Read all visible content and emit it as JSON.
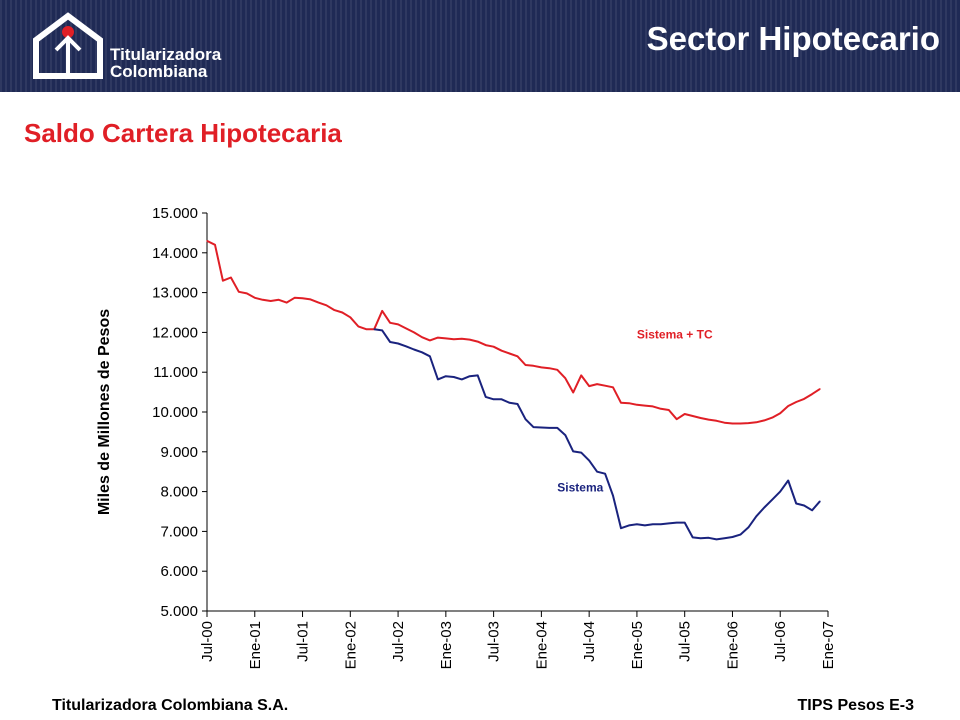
{
  "header": {
    "logo_line1": "Titularizadora",
    "logo_line2": "Colombiana",
    "title": "Sector Hipotecario",
    "background_color": "#1f2a55"
  },
  "page_title": "Saldo Cartera Hipotecaria",
  "footer": {
    "left": "Titularizadora Colombiana S.A.",
    "right": "TIPS Pesos E-3"
  },
  "chart_data": {
    "type": "line",
    "title": "",
    "xlabel": "",
    "ylabel": "Miles de Millones de Pesos",
    "ylim": [
      5000,
      15000
    ],
    "y_ticks": [
      "5.000",
      "6.000",
      "7.000",
      "8.000",
      "9.000",
      "10.000",
      "11.000",
      "12.000",
      "13.000",
      "14.000",
      "15.000"
    ],
    "x_ticks": [
      "Jul-00",
      "Ene-01",
      "Jul-01",
      "Ene-02",
      "Jul-02",
      "Ene-03",
      "Jul-03",
      "Ene-04",
      "Jul-04",
      "Ene-05",
      "Jul-05",
      "Ene-06",
      "Jul-06",
      "Ene-07"
    ],
    "x_months": [
      0,
      78
    ],
    "series": [
      {
        "name": "Sistema + TC",
        "color": "#e01f26",
        "label_at": {
          "month": 54,
          "value": 11850
        },
        "points": [
          [
            0,
            14300
          ],
          [
            1,
            14200
          ],
          [
            2,
            13300
          ],
          [
            3,
            13380
          ],
          [
            4,
            13020
          ],
          [
            5,
            12980
          ],
          [
            6,
            12870
          ],
          [
            7,
            12820
          ],
          [
            8,
            12790
          ],
          [
            9,
            12820
          ],
          [
            10,
            12750
          ],
          [
            11,
            12870
          ],
          [
            12,
            12860
          ],
          [
            13,
            12830
          ],
          [
            14,
            12750
          ],
          [
            15,
            12680
          ],
          [
            16,
            12560
          ],
          [
            17,
            12500
          ],
          [
            18,
            12380
          ],
          [
            19,
            12150
          ],
          [
            20,
            12080
          ],
          [
            21,
            12080
          ],
          [
            22,
            12540
          ],
          [
            23,
            12240
          ],
          [
            24,
            12200
          ],
          [
            25,
            12100
          ],
          [
            26,
            12000
          ],
          [
            27,
            11880
          ],
          [
            28,
            11800
          ],
          [
            29,
            11870
          ],
          [
            30,
            11850
          ],
          [
            31,
            11830
          ],
          [
            32,
            11840
          ],
          [
            33,
            11820
          ],
          [
            34,
            11770
          ],
          [
            35,
            11680
          ],
          [
            36,
            11640
          ],
          [
            37,
            11540
          ],
          [
            38,
            11470
          ],
          [
            39,
            11400
          ],
          [
            40,
            11180
          ],
          [
            41,
            11160
          ],
          [
            42,
            11120
          ],
          [
            43,
            11100
          ],
          [
            44,
            11060
          ],
          [
            45,
            10850
          ],
          [
            46,
            10490
          ],
          [
            47,
            10920
          ],
          [
            48,
            10650
          ],
          [
            49,
            10700
          ],
          [
            50,
            10660
          ],
          [
            51,
            10620
          ],
          [
            52,
            10230
          ],
          [
            53,
            10220
          ],
          [
            54,
            10180
          ],
          [
            55,
            10160
          ],
          [
            56,
            10140
          ],
          [
            57,
            10080
          ],
          [
            58,
            10050
          ],
          [
            59,
            9820
          ],
          [
            60,
            9950
          ],
          [
            61,
            9900
          ],
          [
            62,
            9850
          ],
          [
            63,
            9810
          ],
          [
            64,
            9780
          ],
          [
            65,
            9730
          ],
          [
            66,
            9710
          ],
          [
            67,
            9710
          ],
          [
            68,
            9720
          ],
          [
            69,
            9740
          ],
          [
            70,
            9790
          ],
          [
            71,
            9860
          ],
          [
            72,
            9970
          ],
          [
            73,
            10150
          ],
          [
            74,
            10250
          ],
          [
            75,
            10330
          ],
          [
            76,
            10450
          ],
          [
            77,
            10580
          ]
        ]
      },
      {
        "name": "Sistema",
        "color": "#1a237e",
        "label_at": {
          "month": 44,
          "value": 8000
        },
        "points": [
          [
            21,
            12080
          ],
          [
            22,
            12050
          ],
          [
            23,
            11760
          ],
          [
            24,
            11720
          ],
          [
            25,
            11650
          ],
          [
            26,
            11570
          ],
          [
            27,
            11500
          ],
          [
            28,
            11400
          ],
          [
            29,
            10820
          ],
          [
            30,
            10900
          ],
          [
            31,
            10880
          ],
          [
            32,
            10820
          ],
          [
            33,
            10900
          ],
          [
            34,
            10920
          ],
          [
            35,
            10380
          ],
          [
            36,
            10320
          ],
          [
            37,
            10320
          ],
          [
            38,
            10230
          ],
          [
            39,
            10200
          ],
          [
            40,
            9820
          ],
          [
            41,
            9620
          ],
          [
            42,
            9610
          ],
          [
            43,
            9600
          ],
          [
            44,
            9600
          ],
          [
            45,
            9420
          ],
          [
            46,
            9010
          ],
          [
            47,
            8980
          ],
          [
            48,
            8780
          ],
          [
            49,
            8500
          ],
          [
            50,
            8450
          ],
          [
            51,
            7900
          ],
          [
            52,
            7080
          ],
          [
            53,
            7150
          ],
          [
            54,
            7180
          ],
          [
            55,
            7150
          ],
          [
            56,
            7180
          ],
          [
            57,
            7180
          ],
          [
            58,
            7200
          ],
          [
            59,
            7220
          ],
          [
            60,
            7220
          ],
          [
            61,
            6850
          ],
          [
            62,
            6830
          ],
          [
            63,
            6840
          ],
          [
            64,
            6800
          ],
          [
            65,
            6830
          ],
          [
            66,
            6860
          ],
          [
            67,
            6920
          ],
          [
            68,
            7100
          ],
          [
            69,
            7380
          ],
          [
            70,
            7600
          ],
          [
            71,
            7800
          ],
          [
            72,
            8000
          ],
          [
            73,
            8280
          ],
          [
            74,
            7700
          ],
          [
            75,
            7650
          ],
          [
            76,
            7530
          ],
          [
            77,
            7760
          ]
        ]
      }
    ]
  }
}
